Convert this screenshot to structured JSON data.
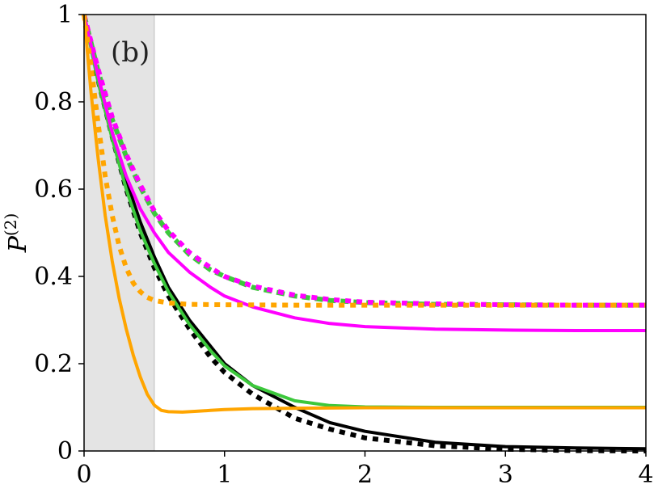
{
  "chart_data": {
    "type": "line",
    "title": "",
    "panel_label": "(b)",
    "xlabel": "",
    "ylabel": "P",
    "ylabel_superscript": "(2)",
    "xlim": [
      0,
      4
    ],
    "ylim": [
      0,
      1
    ],
    "xticks": [
      "0",
      "1",
      "2",
      "3",
      "4"
    ],
    "yticks": [
      "0",
      "0.2",
      "0.4",
      "0.6",
      "0.8",
      "1"
    ],
    "grid": false,
    "shaded_region": {
      "x_start": 0,
      "x_end": 0.5,
      "color": "#e4e4e4"
    },
    "series": [
      {
        "color": "#000000",
        "style": "solid",
        "x": [
          0,
          0.1,
          0.2,
          0.3,
          0.4,
          0.5,
          0.6,
          0.75,
          0.9,
          1.0,
          1.2,
          1.5,
          1.75,
          2.0,
          2.5,
          3.0,
          3.5,
          4.0
        ],
        "y": [
          1.0,
          0.855,
          0.73,
          0.62,
          0.525,
          0.445,
          0.375,
          0.3,
          0.24,
          0.2,
          0.15,
          0.1,
          0.065,
          0.045,
          0.02,
          0.01,
          0.007,
          0.005
        ]
      },
      {
        "color": "#000000",
        "style": "dotted",
        "x": [
          0,
          0.1,
          0.2,
          0.3,
          0.4,
          0.5,
          0.6,
          0.75,
          0.9,
          1.0,
          1.2,
          1.5,
          1.75,
          2.0,
          2.5,
          3.0,
          3.5,
          4.0
        ],
        "y": [
          1.0,
          0.85,
          0.72,
          0.6,
          0.5,
          0.42,
          0.355,
          0.28,
          0.215,
          0.18,
          0.13,
          0.075,
          0.05,
          0.03,
          0.012,
          0.004,
          0.001,
          0.0
        ]
      },
      {
        "color": "#3cc83c",
        "style": "solid",
        "x": [
          0,
          0.1,
          0.2,
          0.3,
          0.4,
          0.5,
          0.6,
          0.75,
          0.9,
          1.0,
          1.2,
          1.5,
          1.75,
          2.0,
          2.5,
          3.0,
          3.5,
          4.0
        ],
        "y": [
          1.0,
          0.845,
          0.715,
          0.6,
          0.505,
          0.43,
          0.365,
          0.29,
          0.23,
          0.195,
          0.15,
          0.115,
          0.104,
          0.101,
          0.1,
          0.1,
          0.1,
          0.1
        ]
      },
      {
        "color": "#3cc83c",
        "style": "dashed",
        "x": [
          0,
          0.1,
          0.2,
          0.3,
          0.4,
          0.5,
          0.6,
          0.75,
          0.9,
          1.0,
          1.2,
          1.5,
          1.75,
          2.0,
          2.5,
          3.0,
          3.5,
          4.0
        ],
        "y": [
          1.0,
          0.87,
          0.76,
          0.675,
          0.605,
          0.545,
          0.5,
          0.45,
          0.415,
          0.4,
          0.375,
          0.355,
          0.345,
          0.34,
          0.336,
          0.335,
          0.334,
          0.334
        ]
      },
      {
        "color": "#ff00ff",
        "style": "solid",
        "x": [
          0,
          0.1,
          0.2,
          0.3,
          0.4,
          0.5,
          0.6,
          0.75,
          0.9,
          1.0,
          1.2,
          1.5,
          1.75,
          2.0,
          2.5,
          3.0,
          3.5,
          4.0
        ],
        "y": [
          1.0,
          0.86,
          0.73,
          0.63,
          0.555,
          0.5,
          0.455,
          0.41,
          0.375,
          0.355,
          0.33,
          0.305,
          0.292,
          0.285,
          0.279,
          0.277,
          0.276,
          0.276
        ]
      },
      {
        "color": "#ff00ff",
        "style": "dotted",
        "x": [
          0,
          0.1,
          0.2,
          0.3,
          0.4,
          0.5,
          0.6,
          0.75,
          0.9,
          1.0,
          1.2,
          1.5,
          1.75,
          2.0,
          2.5,
          3.0,
          3.5,
          4.0
        ],
        "y": [
          1.0,
          0.875,
          0.765,
          0.68,
          0.61,
          0.55,
          0.505,
          0.455,
          0.42,
          0.4,
          0.378,
          0.357,
          0.347,
          0.341,
          0.337,
          0.335,
          0.334,
          0.334
        ]
      },
      {
        "color": "#ffa500",
        "style": "solid",
        "x": [
          0,
          0.05,
          0.1,
          0.15,
          0.2,
          0.25,
          0.3,
          0.35,
          0.4,
          0.45,
          0.5,
          0.55,
          0.6,
          0.7,
          0.8,
          0.9,
          1.0,
          1.2,
          1.5,
          2.0,
          3.0,
          4.0
        ],
        "y": [
          1.0,
          0.82,
          0.67,
          0.54,
          0.435,
          0.35,
          0.28,
          0.22,
          0.17,
          0.13,
          0.105,
          0.093,
          0.09,
          0.089,
          0.091,
          0.093,
          0.095,
          0.097,
          0.098,
          0.099,
          0.099,
          0.099
        ]
      },
      {
        "color": "#ffa500",
        "style": "dotted",
        "x": [
          0,
          0.05,
          0.1,
          0.15,
          0.2,
          0.25,
          0.3,
          0.35,
          0.4,
          0.45,
          0.5,
          0.6,
          0.75,
          1.0,
          1.5,
          2.0,
          3.0,
          4.0
        ],
        "y": [
          1.0,
          0.88,
          0.75,
          0.63,
          0.54,
          0.47,
          0.42,
          0.385,
          0.365,
          0.352,
          0.345,
          0.339,
          0.336,
          0.335,
          0.334,
          0.334,
          0.334,
          0.334
        ]
      }
    ]
  }
}
